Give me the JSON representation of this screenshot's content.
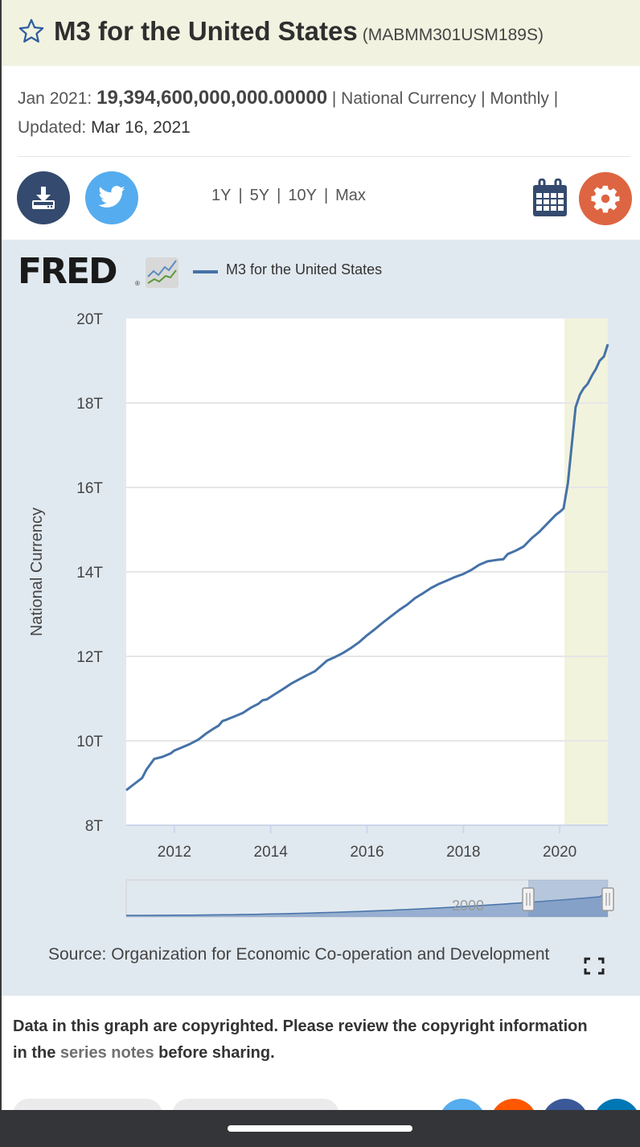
{
  "header": {
    "title": "M3 for the United States",
    "series_code": "(MABMM301USM189S)",
    "favorite_icon": "star-outline-icon"
  },
  "meta": {
    "date_label": "Jan 2021:",
    "value": "19,394,600,000,000.00000",
    "units": "| National Currency | Monthly |",
    "updated_label": "Updated:",
    "updated_value": "Mar 16, 2021"
  },
  "toolbar": {
    "download_icon": "download-icon",
    "twitter_icon": "twitter-icon",
    "ranges": [
      "1Y",
      "5Y",
      "10Y",
      "Max"
    ],
    "calendar_icon": "calendar-icon",
    "settings_icon": "gear-icon"
  },
  "colors": {
    "series": "#4572a7",
    "recession": "#f2f3dc",
    "panel": "#e1e9f0",
    "download": "#344a6e",
    "twitter": "#55acee",
    "settings": "#dd6541"
  },
  "legend": {
    "logo": "FRED",
    "series_label": "M3 for the United States"
  },
  "chart_data": {
    "type": "line",
    "title": "M3 for the United States",
    "xlabel": "",
    "ylabel": "National Currency",
    "ylim": [
      8,
      20
    ],
    "y_unit": "trillions",
    "yticks": [
      "8T",
      "10T",
      "12T",
      "14T",
      "16T",
      "18T",
      "20T"
    ],
    "ytick_values": [
      8,
      10,
      12,
      14,
      16,
      18,
      20
    ],
    "xlim": [
      2011.0,
      2021.0
    ],
    "xticks": [
      "2012",
      "2014",
      "2016",
      "2018",
      "2020"
    ],
    "xtick_values": [
      2012,
      2014,
      2016,
      2018,
      2020
    ],
    "grid": "horizontal",
    "legend_position": "top-left",
    "recession_shading": [
      [
        2020.1,
        2021.0
      ]
    ],
    "series": [
      {
        "name": "M3 for the United States",
        "x": [
          2011.0,
          2011.17,
          2011.33,
          2011.42,
          2011.58,
          2011.75,
          2011.92,
          2012.0,
          2012.17,
          2012.33,
          2012.5,
          2012.67,
          2012.83,
          2012.92,
          2013.0,
          2013.08,
          2013.25,
          2013.42,
          2013.58,
          2013.75,
          2013.83,
          2013.92,
          2014.08,
          2014.25,
          2014.42,
          2014.58,
          2014.75,
          2014.92,
          2015.0,
          2015.17,
          2015.33,
          2015.5,
          2015.67,
          2015.83,
          2016.0,
          2016.17,
          2016.33,
          2016.5,
          2016.67,
          2016.83,
          2017.0,
          2017.17,
          2017.33,
          2017.5,
          2017.67,
          2017.83,
          2018.0,
          2018.17,
          2018.33,
          2018.5,
          2018.67,
          2018.83,
          2018.92,
          2019.08,
          2019.25,
          2019.42,
          2019.58,
          2019.75,
          2019.92,
          2020.0,
          2020.08,
          2020.17,
          2020.33,
          2020.42,
          2020.5,
          2020.58,
          2020.67,
          2020.75,
          2020.83,
          2020.92,
          2021.0
        ],
        "values": [
          8.83,
          8.98,
          9.12,
          9.32,
          9.57,
          9.62,
          9.7,
          9.77,
          9.85,
          9.93,
          10.03,
          10.18,
          10.3,
          10.36,
          10.47,
          10.5,
          10.58,
          10.66,
          10.78,
          10.88,
          10.96,
          10.98,
          11.1,
          11.22,
          11.35,
          11.45,
          11.55,
          11.65,
          11.73,
          11.9,
          11.98,
          12.08,
          12.2,
          12.33,
          12.5,
          12.65,
          12.8,
          12.95,
          13.1,
          13.22,
          13.38,
          13.5,
          13.62,
          13.72,
          13.8,
          13.88,
          13.95,
          14.05,
          14.17,
          14.25,
          14.28,
          14.3,
          14.42,
          14.5,
          14.6,
          14.8,
          14.95,
          15.15,
          15.35,
          15.42,
          15.5,
          16.1,
          17.9,
          18.2,
          18.35,
          18.45,
          18.65,
          18.8,
          19.0,
          19.1,
          19.39
        ]
      }
    ],
    "navigator": {
      "label": "2000",
      "selected_range": [
        2011.0,
        2021.0
      ]
    },
    "source": "Source: Organization for Economic Co-operation and Development"
  },
  "footer": {
    "copyright_prefix": "Data in this graph are copyrighted. Please review the copyright information in the ",
    "copyright_link": "series notes",
    "copyright_suffix": " before sharing."
  }
}
